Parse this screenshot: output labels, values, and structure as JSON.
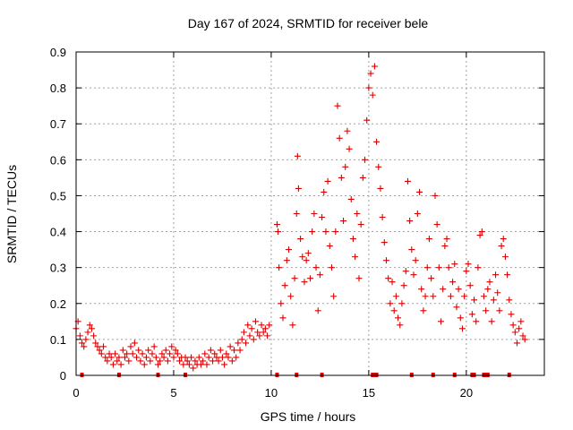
{
  "chart_data": {
    "type": "scatter",
    "title": "Day 167 of 2024, SRMTID for receiver bele",
    "xlabel": "GPS time / hours",
    "ylabel": "SRMTID / TECUs",
    "xlim": [
      0,
      24
    ],
    "ylim": [
      0,
      0.9
    ],
    "xticks": [
      0,
      5,
      10,
      15,
      20
    ],
    "xtick_labels": [
      "0",
      "5",
      "10",
      "15",
      "20"
    ],
    "yticks": [
      0,
      0.1,
      0.2,
      0.3,
      0.4,
      0.5,
      0.6,
      0.7,
      0.8,
      0.9
    ],
    "ytick_labels": [
      "0",
      "0.1",
      "0.2",
      "0.3",
      "0.4",
      "0.5",
      "0.6",
      "0.7",
      "0.8",
      "0.9"
    ],
    "grid": true,
    "marker": "+",
    "color": "#dd0000",
    "series": [
      {
        "name": "SRMTID",
        "points": [
          [
            0.0,
            0.13
          ],
          [
            0.1,
            0.15
          ],
          [
            0.2,
            0.11
          ],
          [
            0.3,
            0.09
          ],
          [
            0.4,
            0.08
          ],
          [
            0.5,
            0.1
          ],
          [
            0.6,
            0.12
          ],
          [
            0.7,
            0.14
          ],
          [
            0.8,
            0.13
          ],
          [
            0.9,
            0.11
          ],
          [
            1.0,
            0.09
          ],
          [
            1.1,
            0.08
          ],
          [
            1.2,
            0.07
          ],
          [
            1.3,
            0.06
          ],
          [
            1.4,
            0.08
          ],
          [
            1.5,
            0.05
          ],
          [
            1.6,
            0.04
          ],
          [
            1.7,
            0.06
          ],
          [
            1.8,
            0.05
          ],
          [
            1.9,
            0.03
          ],
          [
            2.0,
            0.06
          ],
          [
            2.1,
            0.04
          ],
          [
            2.2,
            0.05
          ],
          [
            2.3,
            0.03
          ],
          [
            2.4,
            0.07
          ],
          [
            2.5,
            0.05
          ],
          [
            2.6,
            0.06
          ],
          [
            2.7,
            0.04
          ],
          [
            2.8,
            0.08
          ],
          [
            2.9,
            0.06
          ],
          [
            3.0,
            0.09
          ],
          [
            3.1,
            0.05
          ],
          [
            3.2,
            0.07
          ],
          [
            3.3,
            0.04
          ],
          [
            3.4,
            0.06
          ],
          [
            3.5,
            0.03
          ],
          [
            3.6,
            0.05
          ],
          [
            3.7,
            0.07
          ],
          [
            3.8,
            0.04
          ],
          [
            3.9,
            0.06
          ],
          [
            4.0,
            0.08
          ],
          [
            4.1,
            0.05
          ],
          [
            4.2,
            0.03
          ],
          [
            4.3,
            0.04
          ],
          [
            4.4,
            0.06
          ],
          [
            4.5,
            0.05
          ],
          [
            4.6,
            0.07
          ],
          [
            4.7,
            0.04
          ],
          [
            4.8,
            0.06
          ],
          [
            4.9,
            0.08
          ],
          [
            5.0,
            0.05
          ],
          [
            5.1,
            0.07
          ],
          [
            5.2,
            0.06
          ],
          [
            5.3,
            0.04
          ],
          [
            5.4,
            0.05
          ],
          [
            5.5,
            0.03
          ],
          [
            5.6,
            0.05
          ],
          [
            5.7,
            0.04
          ],
          [
            5.8,
            0.03
          ],
          [
            5.9,
            0.05
          ],
          [
            6.0,
            0.02
          ],
          [
            6.1,
            0.04
          ],
          [
            6.2,
            0.03
          ],
          [
            6.3,
            0.05
          ],
          [
            6.4,
            0.03
          ],
          [
            6.5,
            0.04
          ],
          [
            6.6,
            0.06
          ],
          [
            6.7,
            0.03
          ],
          [
            6.8,
            0.05
          ],
          [
            6.9,
            0.07
          ],
          [
            7.0,
            0.04
          ],
          [
            7.1,
            0.06
          ],
          [
            7.2,
            0.05
          ],
          [
            7.3,
            0.04
          ],
          [
            7.4,
            0.07
          ],
          [
            7.5,
            0.05
          ],
          [
            7.6,
            0.03
          ],
          [
            7.7,
            0.06
          ],
          [
            7.8,
            0.05
          ],
          [
            7.9,
            0.08
          ],
          [
            8.0,
            0.04
          ],
          [
            8.1,
            0.07
          ],
          [
            8.2,
            0.05
          ],
          [
            8.3,
            0.09
          ],
          [
            8.4,
            0.07
          ],
          [
            8.5,
            0.1
          ],
          [
            8.6,
            0.12
          ],
          [
            8.7,
            0.09
          ],
          [
            8.8,
            0.14
          ],
          [
            8.9,
            0.11
          ],
          [
            9.0,
            0.13
          ],
          [
            9.1,
            0.1
          ],
          [
            9.2,
            0.15
          ],
          [
            9.3,
            0.12
          ],
          [
            9.4,
            0.11
          ],
          [
            9.5,
            0.14
          ],
          [
            9.6,
            0.12
          ],
          [
            9.7,
            0.13
          ],
          [
            9.8,
            0.11
          ],
          [
            9.9,
            0.14
          ],
          [
            10.3,
            0.42
          ],
          [
            10.35,
            0.4
          ],
          [
            10.4,
            0.3
          ],
          [
            10.5,
            0.2
          ],
          [
            10.6,
            0.16
          ],
          [
            10.7,
            0.25
          ],
          [
            10.8,
            0.32
          ],
          [
            10.9,
            0.35
          ],
          [
            11.0,
            0.22
          ],
          [
            11.1,
            0.14
          ],
          [
            11.2,
            0.27
          ],
          [
            11.3,
            0.45
          ],
          [
            11.35,
            0.61
          ],
          [
            11.4,
            0.52
          ],
          [
            11.5,
            0.38
          ],
          [
            11.6,
            0.33
          ],
          [
            11.7,
            0.26
          ],
          [
            11.8,
            0.32
          ],
          [
            11.9,
            0.34
          ],
          [
            12.0,
            0.27
          ],
          [
            12.1,
            0.4
          ],
          [
            12.2,
            0.45
          ],
          [
            12.3,
            0.3
          ],
          [
            12.4,
            0.18
          ],
          [
            12.5,
            0.28
          ],
          [
            12.6,
            0.44
          ],
          [
            12.7,
            0.51
          ],
          [
            12.8,
            0.4
          ],
          [
            12.9,
            0.54
          ],
          [
            13.0,
            0.36
          ],
          [
            13.1,
            0.3
          ],
          [
            13.2,
            0.22
          ],
          [
            13.3,
            0.4
          ],
          [
            13.4,
            0.75
          ],
          [
            13.5,
            0.66
          ],
          [
            13.6,
            0.55
          ],
          [
            13.7,
            0.43
          ],
          [
            13.8,
            0.58
          ],
          [
            13.9,
            0.68
          ],
          [
            14.0,
            0.63
          ],
          [
            14.1,
            0.49
          ],
          [
            14.2,
            0.38
          ],
          [
            14.3,
            0.33
          ],
          [
            14.4,
            0.45
          ],
          [
            14.5,
            0.27
          ],
          [
            14.6,
            0.42
          ],
          [
            14.7,
            0.55
          ],
          [
            14.8,
            0.6
          ],
          [
            14.9,
            0.71
          ],
          [
            15.0,
            0.8
          ],
          [
            15.1,
            0.84
          ],
          [
            15.2,
            0.78
          ],
          [
            15.3,
            0.86
          ],
          [
            15.4,
            0.65
          ],
          [
            15.5,
            0.58
          ],
          [
            15.6,
            0.52
          ],
          [
            15.7,
            0.44
          ],
          [
            15.8,
            0.37
          ],
          [
            15.9,
            0.32
          ],
          [
            16.0,
            0.27
          ],
          [
            16.1,
            0.2
          ],
          [
            16.2,
            0.26
          ],
          [
            16.3,
            0.18
          ],
          [
            16.4,
            0.22
          ],
          [
            16.5,
            0.16
          ],
          [
            16.6,
            0.14
          ],
          [
            16.7,
            0.2
          ],
          [
            16.8,
            0.25
          ],
          [
            16.9,
            0.29
          ],
          [
            17.0,
            0.54
          ],
          [
            17.1,
            0.43
          ],
          [
            17.2,
            0.35
          ],
          [
            17.3,
            0.28
          ],
          [
            17.4,
            0.32
          ],
          [
            17.5,
            0.45
          ],
          [
            17.6,
            0.51
          ],
          [
            17.7,
            0.24
          ],
          [
            17.8,
            0.18
          ],
          [
            17.9,
            0.22
          ],
          [
            18.0,
            0.3
          ],
          [
            18.1,
            0.38
          ],
          [
            18.2,
            0.27
          ],
          [
            18.3,
            0.22
          ],
          [
            18.4,
            0.5
          ],
          [
            18.5,
            0.42
          ],
          [
            18.6,
            0.3
          ],
          [
            18.7,
            0.15
          ],
          [
            18.8,
            0.24
          ],
          [
            18.9,
            0.36
          ],
          [
            19.0,
            0.38
          ],
          [
            19.1,
            0.3
          ],
          [
            19.2,
            0.22
          ],
          [
            19.3,
            0.26
          ],
          [
            19.4,
            0.31
          ],
          [
            19.5,
            0.19
          ],
          [
            19.6,
            0.24
          ],
          [
            19.7,
            0.16
          ],
          [
            19.8,
            0.13
          ],
          [
            19.9,
            0.22
          ],
          [
            20.0,
            0.29
          ],
          [
            20.1,
            0.31
          ],
          [
            20.2,
            0.25
          ],
          [
            20.3,
            0.17
          ],
          [
            20.4,
            0.21
          ],
          [
            20.5,
            0.15
          ],
          [
            20.6,
            0.3
          ],
          [
            20.7,
            0.39
          ],
          [
            20.8,
            0.4
          ],
          [
            20.9,
            0.22
          ],
          [
            21.0,
            0.18
          ],
          [
            21.1,
            0.24
          ],
          [
            21.2,
            0.26
          ],
          [
            21.3,
            0.15
          ],
          [
            21.4,
            0.21
          ],
          [
            21.5,
            0.28
          ],
          [
            21.6,
            0.23
          ],
          [
            21.7,
            0.18
          ],
          [
            21.8,
            0.36
          ],
          [
            21.9,
            0.38
          ],
          [
            22.0,
            0.33
          ],
          [
            22.1,
            0.28
          ],
          [
            22.2,
            0.21
          ],
          [
            22.3,
            0.17
          ],
          [
            22.4,
            0.14
          ],
          [
            22.5,
            0.12
          ],
          [
            22.6,
            0.09
          ],
          [
            22.7,
            0.13
          ],
          [
            22.8,
            0.15
          ],
          [
            22.9,
            0.11
          ],
          [
            23.0,
            0.1
          ]
        ]
      },
      {
        "name": "zero-markers",
        "points": [
          [
            0.3,
            0
          ],
          [
            2.2,
            0
          ],
          [
            4.2,
            0
          ],
          [
            5.6,
            0
          ],
          [
            10.3,
            0
          ],
          [
            11.3,
            0
          ],
          [
            12.6,
            0
          ],
          [
            15.2,
            0
          ],
          [
            15.3,
            0
          ],
          [
            15.4,
            0
          ],
          [
            17.2,
            0
          ],
          [
            18.3,
            0
          ],
          [
            19.4,
            0
          ],
          [
            20.3,
            0
          ],
          [
            20.4,
            0
          ],
          [
            20.9,
            0
          ],
          [
            21.0,
            0
          ],
          [
            21.1,
            0
          ],
          [
            22.2,
            0
          ]
        ]
      }
    ]
  }
}
